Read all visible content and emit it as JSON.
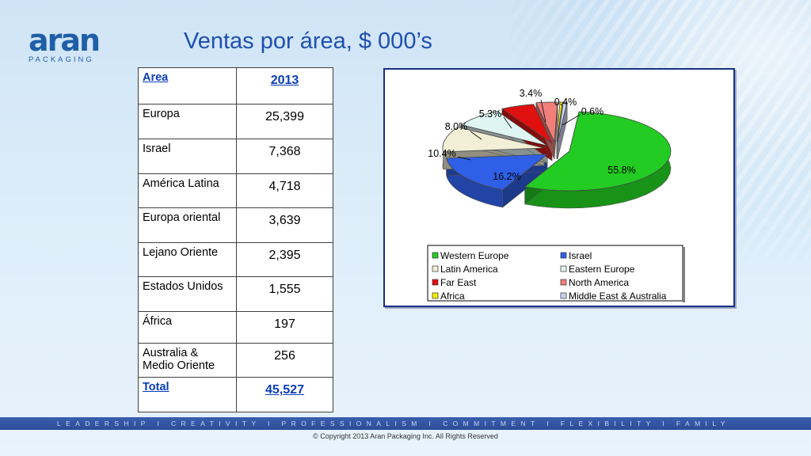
{
  "logo": {
    "main": "aran",
    "sub": "PACKAGING"
  },
  "title": "Ventas por área, $ 000’s",
  "table": {
    "header": {
      "area": "Area",
      "year": "2013"
    },
    "rows": [
      {
        "area": "Europa",
        "value": "25,399"
      },
      {
        "area": "Israel",
        "value": "7,368"
      },
      {
        "area": "América Latina",
        "value": "4,718"
      },
      {
        "area": "Europa oriental",
        "value": "3,639"
      },
      {
        "area": "Lejano Oriente",
        "value": "2,395"
      },
      {
        "area": "Estados Unidos",
        "value": "1,555"
      },
      {
        "area": "África",
        "value": "197"
      },
      {
        "area": "Australia & Medio Oriente",
        "value": "256"
      }
    ],
    "total": {
      "area": "Total",
      "value": "45,527"
    }
  },
  "chart_data": {
    "type": "pie",
    "categories": [
      "Western Europe",
      "Israel",
      "Latin America",
      "Eastern Europe",
      "Far East",
      "North America",
      "Africa",
      "Middle East & Australia"
    ],
    "values": [
      55.8,
      16.2,
      10.4,
      8.0,
      5.3,
      3.4,
      0.4,
      0.6
    ],
    "data_labels": [
      "55.8%",
      "16.2%",
      "10.4%",
      "8.0%",
      "5.3%",
      "3.4%",
      "0.4%",
      "0.6%"
    ],
    "colors": [
      "#22cc22",
      "#2f5fe6",
      "#f3efd6",
      "#dff5f2",
      "#e01010",
      "#f07f7a",
      "#f5f000",
      "#c9d2f5"
    ],
    "exploded": true,
    "legend_position": "bottom"
  },
  "footer": {
    "band": "LEADERSHIP I CREATIVITY I PROFESSIONALISM I COMMITMENT I FLEXIBILITY I FAMILY",
    "copyright": "© Copyright 2013 Aran Packaging Inc. All Rights Reserved"
  }
}
